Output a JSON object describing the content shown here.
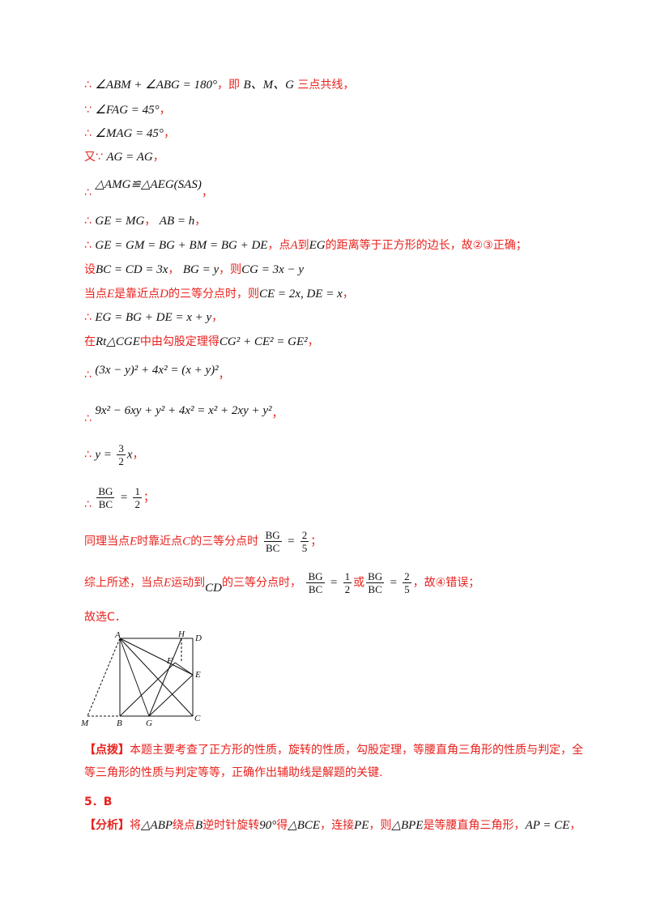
{
  "lines": {
    "l1": {
      "therefore": "∴",
      "math": "∠ABM + ∠ABG = 180°",
      "text1": "，即",
      "pts": "B、M、G",
      "text2": "三点共线，"
    },
    "l2": {
      "because": "∵",
      "math": "∠FAG = 45°",
      "text": "，"
    },
    "l3": {
      "therefore": "∴",
      "math": "∠MAG = 45°",
      "text": "，"
    },
    "l4": {
      "prefix": "又∵",
      "math": "AG = AG",
      "text": "，"
    },
    "l5": {
      "therefore": "∴",
      "math": "△AMG≌△AEG(SAS)",
      "text": "，"
    },
    "l6": {
      "therefore": "∴",
      "math1": "GE = MG",
      "sep": "，",
      "math2": "AB = h",
      "text": "，"
    },
    "l7": {
      "therefore": "∴",
      "math": "GE = GM = BG + BM = BG + DE",
      "text1": "，点",
      "ptA": "A",
      "text2": "到",
      "seg": "EG",
      "text3": "的距离等于正方形的边长，故②③正确；"
    },
    "l8": {
      "prefix": "设",
      "math1": "BC = CD = 3x",
      "sep": "，",
      "math2": "BG = y",
      "text1": "，则",
      "math3": "CG = 3x − y"
    },
    "l9": {
      "text1": "当点",
      "ptE": "E",
      "text2": "是靠近点",
      "ptD": "D",
      "text3": "的三等分点时，则",
      "math": "CE = 2x,  DE = x",
      "text4": "，"
    },
    "l10": {
      "therefore": "∴",
      "math": "EG = BG + DE = x + y",
      "text": "，"
    },
    "l11": {
      "text1": "在",
      "math1": "Rt△CGE",
      "text2": "中由勾股定理得",
      "math2": "CG² + CE² = GE²",
      "text3": "，"
    },
    "l12": {
      "therefore": "∴",
      "math": "(3x − y)² + 4x² = (x + y)²",
      "text": "，"
    },
    "l13": {
      "therefore": "∴",
      "math": "9x² − 6xy + y² + 4x² = x² + 2xy + y²",
      "text": "，"
    },
    "l14": {
      "therefore": "∴",
      "lhs": "y =",
      "num": "3",
      "den": "2",
      "var": "x",
      "text": "，"
    },
    "l15": {
      "therefore": "∴",
      "num1": "BG",
      "den1": "BC",
      "eq": "=",
      "num2": "1",
      "den2": "2",
      "text": "；"
    },
    "l16": {
      "text1": "同理当点",
      "ptE": "E",
      "text2": "时靠近点",
      "ptC": "C",
      "text3": "的三等分点时",
      "num1": "BG",
      "den1": "BC",
      "eq": "=",
      "num2": "2",
      "den2": "5",
      "text4": "；"
    },
    "l17": {
      "text1": "综上所述，当点",
      "ptE": "E",
      "text2": "运动到",
      "seg": "CD",
      "text3": "的三等分点时，",
      "num1": "BG",
      "den1": "BC",
      "eq": "=",
      "num2": "1",
      "den2": "2",
      "or": "或",
      "num3": "BG",
      "den3": "BC",
      "eq2": "=",
      "num4": "2",
      "den4": "5",
      "text4": "，故④错误；"
    },
    "l18": {
      "text": "故选C．"
    }
  },
  "figure": {
    "labels": {
      "A": "A",
      "H": "H",
      "D": "D",
      "F": "F",
      "E": "E",
      "M": "M",
      "B": "B",
      "G": "G",
      "C": "C"
    }
  },
  "tip": {
    "tag": "【点拨】",
    "text": "本题主要考查了正方形的性质，旋转的性质，勾股定理，等腰直角三角形的性质与判定，全等三角形的性质与判定等等，正确作出辅助线是解题的关键."
  },
  "q5": {
    "label": "5．B"
  },
  "analysis": {
    "tag": "【分析】",
    "text1": "将",
    "math1": "△ABP",
    "text2": "绕点",
    "ptB": "B",
    "text3": "逆时针旋转",
    "deg": "90°",
    "text4": "得",
    "math2": "△BCE",
    "text5": "，连接",
    "math3": "PE",
    "text6": "，则",
    "math4": "△BPE",
    "text7": "是等腰直角三角形，",
    "math5": "AP = CE",
    "text8": "，"
  }
}
